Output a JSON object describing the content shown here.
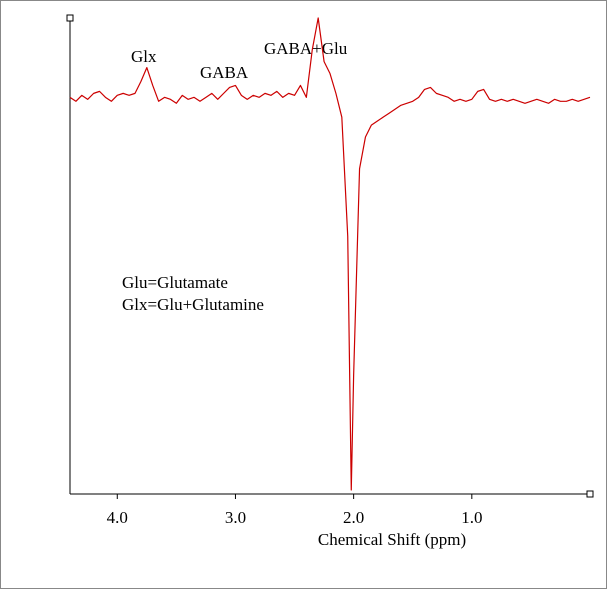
{
  "chart_data": {
    "type": "line",
    "xlabel": "Chemical Shift (ppm)",
    "annotations": [
      "Glx",
      "GABA",
      "GABA+Glu",
      "Glu=Glutamate",
      "Glx=Glu+Glutamine"
    ],
    "x": [
      4.4,
      4.35,
      4.3,
      4.25,
      4.2,
      4.15,
      4.1,
      4.05,
      4.0,
      3.95,
      3.9,
      3.85,
      3.8,
      3.75,
      3.7,
      3.65,
      3.6,
      3.55,
      3.5,
      3.45,
      3.4,
      3.35,
      3.3,
      3.25,
      3.2,
      3.15,
      3.1,
      3.05,
      3.0,
      2.95,
      2.9,
      2.85,
      2.8,
      2.75,
      2.7,
      2.65,
      2.6,
      2.55,
      2.5,
      2.45,
      2.4,
      2.35,
      2.3,
      2.25,
      2.2,
      2.15,
      2.1,
      2.05,
      2.02,
      2.0,
      1.95,
      1.9,
      1.85,
      1.8,
      1.75,
      1.7,
      1.65,
      1.6,
      1.55,
      1.5,
      1.45,
      1.4,
      1.35,
      1.3,
      1.25,
      1.2,
      1.15,
      1.1,
      1.05,
      1.0,
      0.95,
      0.9,
      0.85,
      0.8,
      0.75,
      0.7,
      0.65,
      0.6,
      0.55,
      0.5,
      0.45,
      0.4,
      0.35,
      0.3,
      0.25,
      0.2,
      0.15,
      0.1,
      0.05,
      0.0
    ],
    "series": [
      {
        "color": "#cc0000",
        "values": [
          0.0,
          -0.1,
          0.05,
          -0.05,
          0.1,
          0.15,
          0.0,
          -0.1,
          0.05,
          0.1,
          0.05,
          0.1,
          0.4,
          0.75,
          0.3,
          -0.1,
          0.0,
          -0.05,
          -0.15,
          0.05,
          -0.05,
          0.0,
          -0.1,
          0.0,
          0.1,
          -0.05,
          0.1,
          0.25,
          0.3,
          0.05,
          -0.05,
          0.05,
          0.0,
          0.1,
          0.05,
          0.15,
          0.0,
          0.1,
          0.05,
          0.3,
          0.0,
          1.2,
          2.0,
          0.9,
          0.6,
          0.1,
          -0.5,
          -3.5,
          -9.9,
          -7.0,
          -1.8,
          -1.0,
          -0.7,
          -0.6,
          -0.5,
          -0.4,
          -0.3,
          -0.2,
          -0.15,
          -0.1,
          0.0,
          0.2,
          0.25,
          0.1,
          0.05,
          0.0,
          -0.1,
          -0.05,
          -0.1,
          -0.05,
          0.15,
          0.2,
          -0.05,
          -0.1,
          -0.05,
          -0.1,
          -0.05,
          -0.1,
          -0.15,
          -0.1,
          -0.05,
          -0.1,
          -0.15,
          -0.05,
          -0.1,
          -0.1,
          -0.05,
          -0.1,
          -0.05,
          0.0
        ]
      }
    ],
    "xlim": [
      4.4,
      0.0
    ],
    "ylim": [
      -10,
      2
    ],
    "xticks": [
      {
        "value": 4,
        "label": "4.0"
      },
      {
        "value": 3,
        "label": "3.0"
      },
      {
        "value": 2,
        "label": "2.0"
      },
      {
        "value": 1,
        "label": "1.0"
      }
    ]
  }
}
